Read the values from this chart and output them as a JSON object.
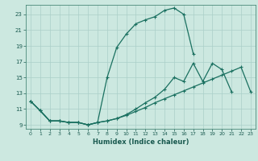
{
  "xlabel": "Humidex (Indice chaleur)",
  "bg_color": "#cce8e0",
  "grid_color": "#aacfc8",
  "line_color": "#1a7060",
  "xlim": [
    -0.5,
    23.5
  ],
  "ylim": [
    8.5,
    24.2
  ],
  "xticks": [
    0,
    1,
    2,
    3,
    4,
    5,
    6,
    7,
    8,
    9,
    10,
    11,
    12,
    13,
    14,
    15,
    16,
    17,
    18,
    19,
    20,
    21,
    22,
    23
  ],
  "yticks": [
    9,
    11,
    13,
    15,
    17,
    19,
    21,
    23
  ],
  "curve1_x": [
    0,
    1,
    2,
    3,
    4,
    5,
    6,
    7,
    8,
    9,
    10,
    11,
    12,
    13,
    14,
    15,
    16,
    17
  ],
  "curve1_y": [
    12.0,
    10.8,
    9.5,
    9.5,
    9.3,
    9.3,
    9.0,
    9.3,
    15.0,
    18.8,
    20.5,
    21.8,
    22.3,
    22.7,
    23.5,
    23.8,
    23.0,
    18.0
  ],
  "curve2_x": [
    0,
    1,
    2,
    3,
    4,
    5,
    6,
    7,
    8,
    9,
    10,
    11,
    12,
    13,
    14,
    15,
    16,
    17,
    18,
    19,
    20,
    21,
    22,
    23
  ],
  "curve2_y": [
    12.0,
    10.8,
    9.5,
    9.5,
    9.3,
    9.3,
    9.0,
    9.3,
    9.5,
    9.8,
    10.2,
    10.7,
    11.2,
    11.8,
    12.3,
    12.8,
    13.3,
    13.8,
    14.3,
    14.8,
    15.3,
    15.8,
    16.3,
    13.2
  ],
  "curve3_x": [
    0,
    1,
    2,
    3,
    4,
    5,
    6,
    7,
    8,
    9,
    10,
    11,
    12,
    13,
    14,
    15,
    16,
    17,
    18,
    19,
    20,
    21
  ],
  "curve3_y": [
    12.0,
    10.8,
    9.5,
    9.5,
    9.3,
    9.3,
    9.0,
    9.3,
    9.5,
    9.8,
    10.3,
    11.0,
    11.8,
    12.5,
    13.5,
    15.0,
    14.5,
    16.8,
    14.5,
    16.8,
    16.0,
    13.2
  ]
}
